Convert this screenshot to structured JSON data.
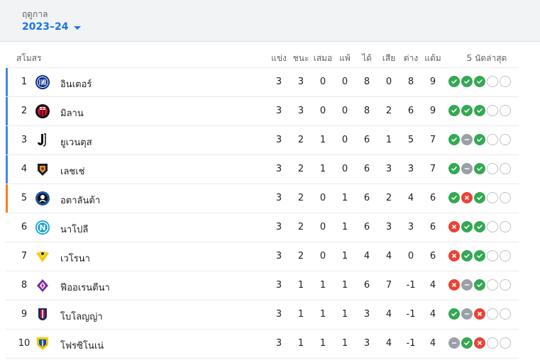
{
  "header": {
    "season_label": "ฤดูกาล",
    "season_value": "2023–24"
  },
  "columns": {
    "club": "สโมสร",
    "played": "แข่ง",
    "won": "ชนะ",
    "drawn": "เสมอ",
    "lost": "แพ้",
    "gf": "ได้",
    "ga": "เสีย",
    "gd": "ต่าง",
    "pts": "แต้ม",
    "form": "5 นัดล่าสุด"
  },
  "colors": {
    "ucl": "#4285f4",
    "uel": "#fa7b17",
    "win": "#34a853",
    "loss": "#ea4335",
    "draw": "#9aa0a6"
  },
  "rows": [
    {
      "pos": "1",
      "team": "อินเตอร์",
      "logo": "inter-logo",
      "qual": "ucl",
      "p": "3",
      "w": "3",
      "d": "0",
      "l": "0",
      "gf": "8",
      "ga": "0",
      "gd": "8",
      "pts": "9",
      "form": [
        "W",
        "W",
        "W",
        "E",
        "E"
      ]
    },
    {
      "pos": "2",
      "team": "มิลาน",
      "logo": "milan-logo",
      "qual": "ucl",
      "p": "3",
      "w": "3",
      "d": "0",
      "l": "0",
      "gf": "8",
      "ga": "2",
      "gd": "6",
      "pts": "9",
      "form": [
        "W",
        "W",
        "W",
        "E",
        "E"
      ]
    },
    {
      "pos": "3",
      "team": "ยูเวนตุส",
      "logo": "juventus-logo",
      "qual": "ucl",
      "p": "3",
      "w": "2",
      "d": "1",
      "l": "0",
      "gf": "6",
      "ga": "1",
      "gd": "5",
      "pts": "7",
      "form": [
        "W",
        "D",
        "W",
        "E",
        "E"
      ]
    },
    {
      "pos": "4",
      "team": "เลชเช่",
      "logo": "lecce-logo",
      "qual": "ucl",
      "p": "3",
      "w": "2",
      "d": "1",
      "l": "0",
      "gf": "6",
      "ga": "3",
      "gd": "3",
      "pts": "7",
      "form": [
        "W",
        "D",
        "W",
        "E",
        "E"
      ]
    },
    {
      "pos": "5",
      "team": "อตาลันต้า",
      "logo": "atalanta-logo",
      "qual": "uel",
      "p": "3",
      "w": "2",
      "d": "0",
      "l": "1",
      "gf": "6",
      "ga": "2",
      "gd": "4",
      "pts": "6",
      "form": [
        "W",
        "L",
        "W",
        "E",
        "E"
      ]
    },
    {
      "pos": "6",
      "team": "นาโปลี",
      "logo": "napoli-logo",
      "qual": "",
      "p": "3",
      "w": "2",
      "d": "0",
      "l": "1",
      "gf": "6",
      "ga": "3",
      "gd": "3",
      "pts": "6",
      "form": [
        "L",
        "W",
        "W",
        "E",
        "E"
      ]
    },
    {
      "pos": "7",
      "team": "เวโรนา",
      "logo": "verona-logo",
      "qual": "",
      "p": "3",
      "w": "2",
      "d": "0",
      "l": "1",
      "gf": "4",
      "ga": "4",
      "gd": "0",
      "pts": "6",
      "form": [
        "L",
        "W",
        "W",
        "E",
        "E"
      ]
    },
    {
      "pos": "8",
      "team": "ฟีออเรนตีนา",
      "logo": "fiorentina-logo",
      "qual": "",
      "p": "3",
      "w": "1",
      "d": "1",
      "l": "1",
      "gf": "6",
      "ga": "7",
      "gd": "-1",
      "pts": "4",
      "form": [
        "L",
        "D",
        "W",
        "E",
        "E"
      ]
    },
    {
      "pos": "9",
      "team": "โบโลญญ่า",
      "logo": "bologna-logo",
      "qual": "",
      "p": "3",
      "w": "1",
      "d": "1",
      "l": "1",
      "gf": "3",
      "ga": "4",
      "gd": "-1",
      "pts": "4",
      "form": [
        "W",
        "D",
        "L",
        "E",
        "E"
      ]
    },
    {
      "pos": "10",
      "team": "โฟรซิโนเน่",
      "logo": "frosinone-logo",
      "qual": "",
      "p": "3",
      "w": "1",
      "d": "1",
      "l": "1",
      "gf": "3",
      "ga": "4",
      "gd": "-1",
      "pts": "4",
      "form": [
        "D",
        "W",
        "L",
        "E",
        "E"
      ]
    }
  ]
}
